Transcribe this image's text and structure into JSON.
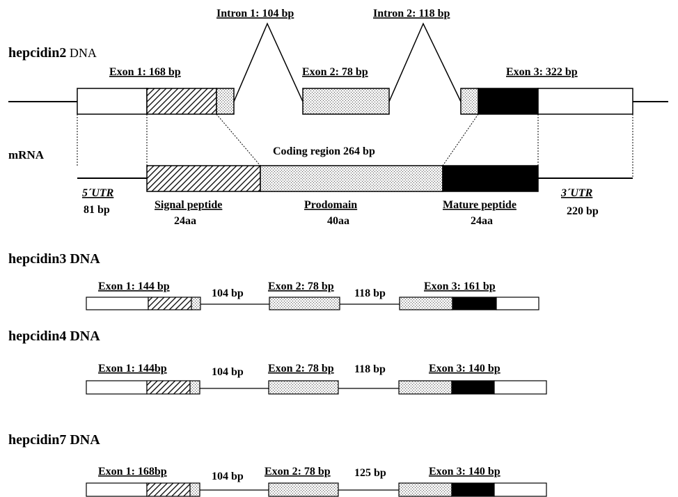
{
  "hepcidin2": {
    "title_bold": "hepcidin2",
    "title_rest": " DNA",
    "intron1": "Intron 1: 104 bp",
    "intron2": "Intron 2: 118 bp",
    "exon1": "Exon 1: 168 bp",
    "exon2": "Exon 2: 78 bp",
    "exon3": "Exon 3: 322 bp",
    "mrna_label": "mRNA",
    "coding_region": "Coding region 264 bp",
    "utr5": "5´UTR",
    "utr5_len": "81 bp",
    "utr3": "3´UTR",
    "utr3_len": "220 bp",
    "signal_peptide": "Signal peptide",
    "signal_aa": "24aa",
    "prodomain": "Prodomain",
    "prodomain_aa": "40aa",
    "mature_peptide": "Mature peptide",
    "mature_aa": "24aa"
  },
  "hepcidin3": {
    "title": "hepcidin3 DNA",
    "exon1": "Exon 1: 144 bp",
    "intron1": "104 bp",
    "exon2": "Exon 2: 78 bp",
    "intron2": "118 bp",
    "exon3": "Exon 3: 161 bp"
  },
  "hepcidin4": {
    "title": "hepcidin4 DNA",
    "exon1": "Exon 1: 144bp",
    "intron1": "104 bp",
    "exon2": "Exon 2: 78 bp",
    "intron2": "118 bp",
    "exon3": "Exon 3: 140 bp"
  },
  "hepcidin7": {
    "title": "hepcidin7 DNA",
    "exon1": "Exon 1: 168bp",
    "intron1": "104 bp",
    "exon2": "Exon 2: 78 bp",
    "intron2": "125 bp",
    "exon3": "Exon 3: 140 bp"
  },
  "legend_colors": {
    "utr": "#ffffff",
    "signal_peptide": "hatched",
    "prodomain": "dotted",
    "mature_peptide": "#000000"
  }
}
